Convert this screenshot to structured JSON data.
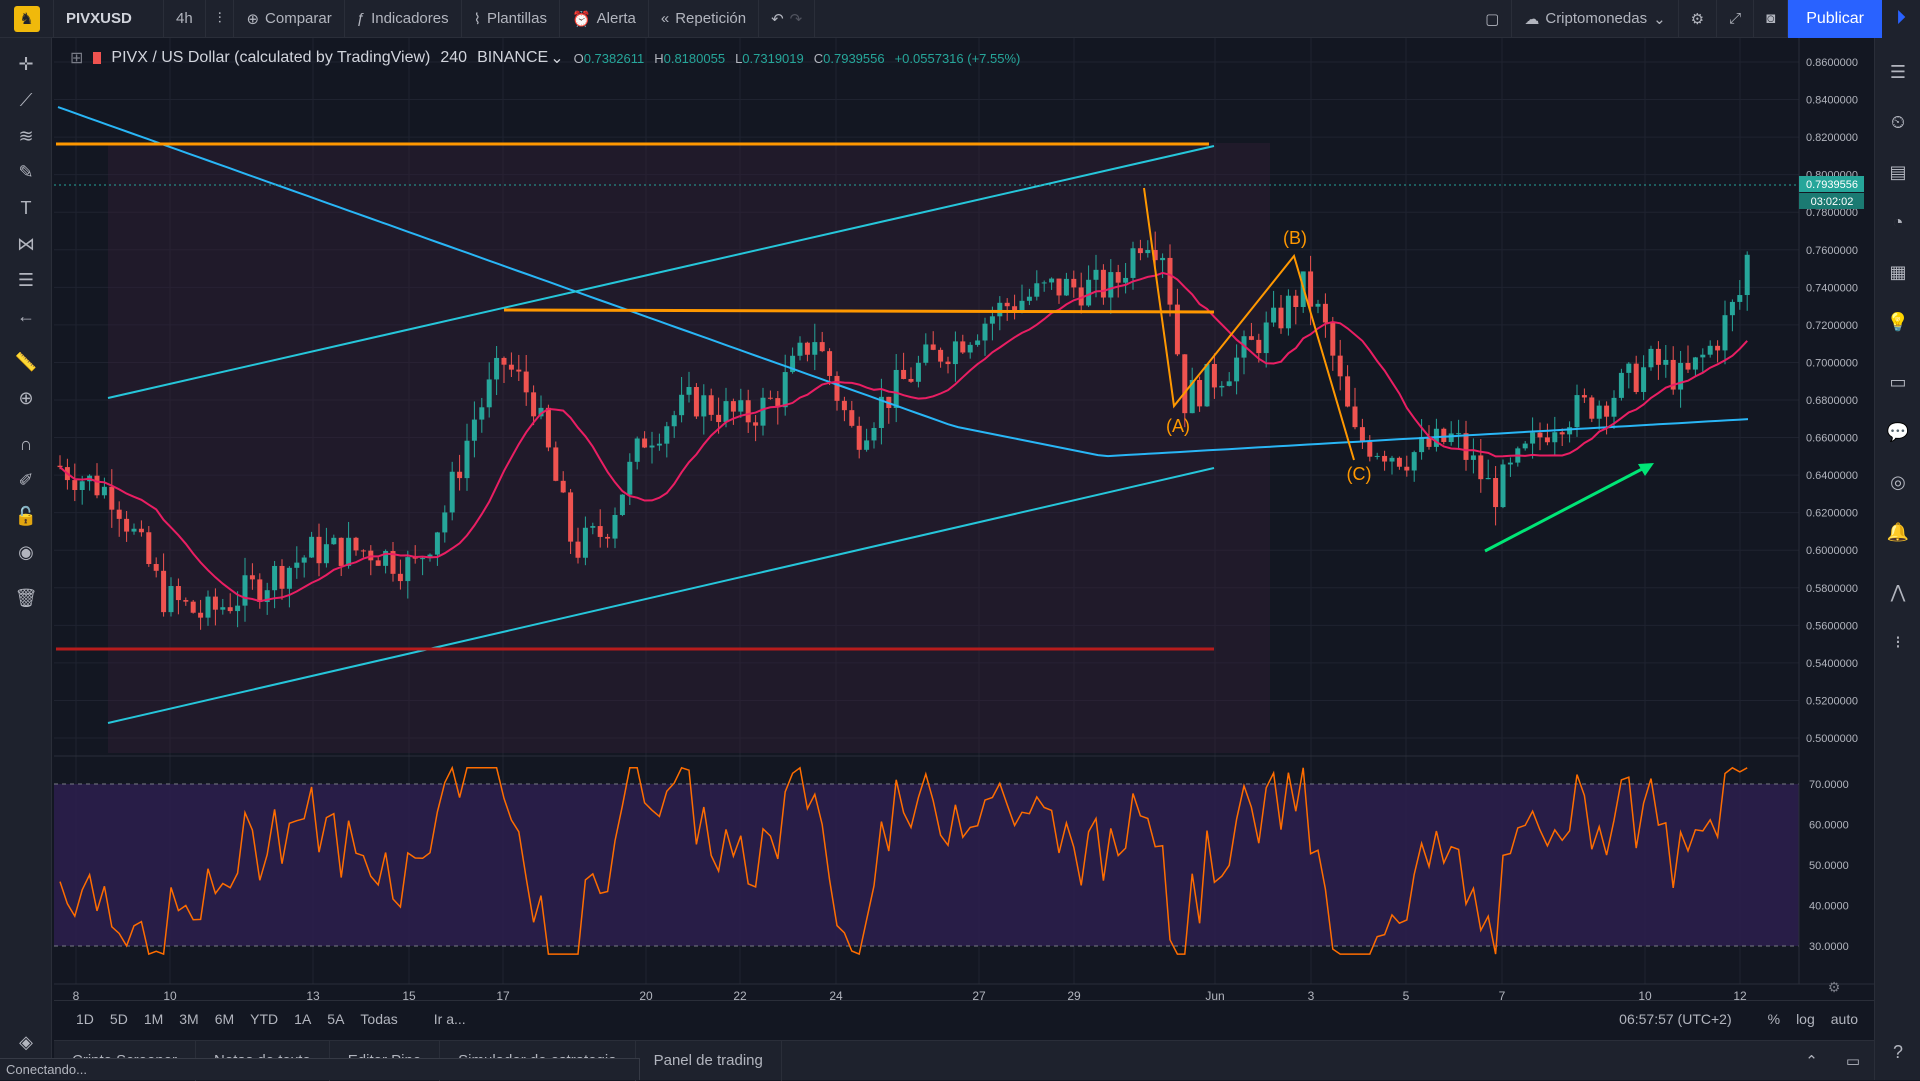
{
  "toolbar": {
    "symbol": "PIVXUSD",
    "interval": "4h",
    "compare": "Comparar",
    "indicators": "Indicadores",
    "templates": "Plantillas",
    "alert": "Alerta",
    "replay": "Repetición",
    "watchlist": "Criptomonedas",
    "publish": "Publicar"
  },
  "legend": {
    "title": "PIVX / US Dollar (calculated by TradingView)",
    "interval": "240",
    "exchange": "BINANCE",
    "open_key": "O",
    "open": "0.7382611",
    "high_key": "H",
    "high": "0.8180055",
    "low_key": "L",
    "low": "0.7319019",
    "close_key": "C",
    "close": "0.7939556",
    "change": "+0.0557316 (+7.55%)"
  },
  "price_axis": {
    "labels": [
      "0.8600000",
      "0.8400000",
      "0.8200000",
      "0.8000000",
      "0.7800000",
      "0.7600000",
      "0.7400000",
      "0.7200000",
      "0.7000000",
      "0.6800000",
      "0.6600000",
      "0.6400000",
      "0.6200000",
      "0.6000000",
      "0.5800000",
      "0.5600000",
      "0.5400000",
      "0.5200000",
      "0.5000000"
    ],
    "current_price": "0.7939556",
    "countdown": "03:02:02"
  },
  "rsi_axis": {
    "labels": [
      "70.0000",
      "60.0000",
      "50.0000",
      "40.0000",
      "30.0000"
    ]
  },
  "time_axis": {
    "labels": [
      "8",
      "10",
      "13",
      "15",
      "17",
      "20",
      "22",
      "24",
      "27",
      "29",
      "Jun",
      "3",
      "5",
      "7",
      "10",
      "12"
    ]
  },
  "annotations": {
    "a": "(A)",
    "b": "(B)",
    "c": "(C)"
  },
  "bottom": {
    "ranges": [
      "1D",
      "5D",
      "1M",
      "3M",
      "6M",
      "YTD",
      "1A",
      "5A",
      "Todas"
    ],
    "goto": "Ir a...",
    "clock": "06:57:57 (UTC+2)",
    "percent": "%",
    "log": "log",
    "auto": "auto"
  },
  "tabs": [
    "Cripto Screener",
    "Notas de texto",
    "Editor Pine",
    "Simulador de estrategia",
    "Panel de trading"
  ],
  "status": "Conectando...",
  "colors": {
    "up": "#26a69a",
    "down": "#ef5350",
    "orange": "#ff9800",
    "cyan": "#26c6da",
    "red_line": "#b71c1c",
    "ma_pink": "#e91e63",
    "ma_blue": "#29b6f6",
    "green_arrow": "#00e676",
    "rsi": "#ff6d00"
  }
}
